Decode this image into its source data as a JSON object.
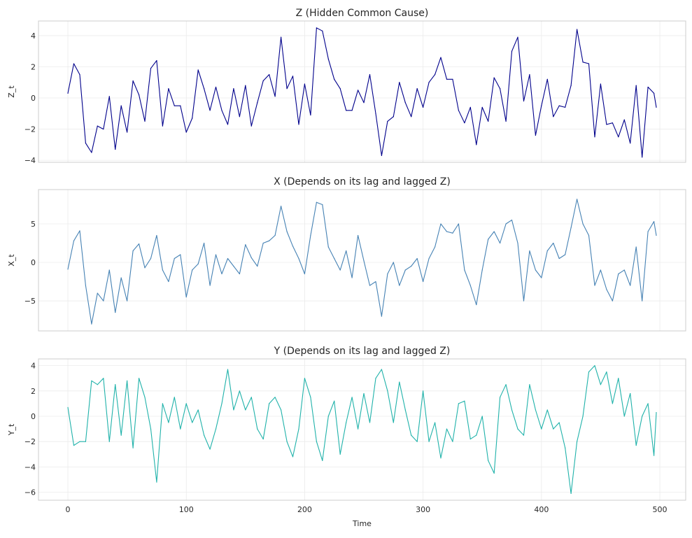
{
  "chart_data": [
    {
      "type": "line",
      "title": "Z (Hidden Common Cause)",
      "xlabel": "",
      "ylabel": "Z_t",
      "color": "#00008b",
      "xlim": [
        -24.85,
        521.85
      ],
      "ylim": [
        -4.13,
        4.94
      ],
      "xticks": [
        0,
        100,
        200,
        300,
        400,
        500
      ],
      "xtick_labels_visible": false,
      "yticks": [
        -4,
        -2,
        0,
        2,
        4
      ],
      "ytick_labels": [
        "−4",
        "−2",
        "0",
        "2",
        "4"
      ],
      "grid": true,
      "y": [
        0.3,
        2.2,
        1.5,
        -2.9,
        -3.5,
        -1.8,
        -2.0,
        0.1,
        -3.3,
        -0.5,
        -2.2,
        1.1,
        0.2,
        -1.5,
        1.9,
        2.4,
        -1.8,
        0.6,
        -0.5,
        -0.5,
        -2.2,
        -1.3,
        1.8,
        0.6,
        -0.8,
        0.7,
        -0.8,
        -1.7,
        0.6,
        -1.2,
        0.8,
        -1.8,
        -0.3,
        1.1,
        1.5,
        0.1,
        3.9,
        0.6,
        1.4,
        -1.7,
        0.9,
        -1.1,
        4.5,
        4.3,
        2.5,
        1.2,
        0.6,
        -0.8,
        -0.8,
        0.5,
        -0.3,
        1.5,
        -1.0,
        -3.7,
        -1.5,
        -1.2,
        1.0,
        -0.3,
        -1.2,
        0.6,
        -0.6,
        1.0,
        1.5,
        2.6,
        1.2,
        1.2,
        -0.8,
        -1.6,
        -0.6,
        -3.0,
        -0.6,
        -1.5,
        1.3,
        0.6,
        -1.5,
        3.0,
        3.9,
        -0.2,
        1.5,
        -2.4,
        -0.5,
        1.2,
        -1.2,
        -0.5,
        -0.6,
        0.8,
        4.4,
        2.3,
        2.2,
        -2.5,
        0.9,
        -1.7,
        -1.6,
        -2.5,
        -1.4,
        -2.9,
        0.8,
        -3.8,
        0.7,
        0.3,
        -0.6
      ]
    },
    {
      "type": "line",
      "title": "X (Depends on its lag and lagged Z)",
      "xlabel": "",
      "ylabel": "X_t",
      "color": "#4682b4",
      "xlim": [
        -24.85,
        521.85
      ],
      "ylim": [
        -8.9,
        9.45
      ],
      "xticks": [
        0,
        100,
        200,
        300,
        400,
        500
      ],
      "xtick_labels_visible": false,
      "yticks": [
        -5,
        0,
        5
      ],
      "ytick_labels": [
        "−5",
        "0",
        "5"
      ],
      "grid": true,
      "y": [
        -0.9,
        2.8,
        4.1,
        -3.0,
        -8.0,
        -4.0,
        -5.0,
        -1.0,
        -6.5,
        -2.0,
        -5.0,
        1.5,
        2.4,
        -0.7,
        0.5,
        3.5,
        -1.0,
        -2.5,
        0.5,
        1.0,
        -4.5,
        -1.0,
        -0.2,
        2.5,
        -3.0,
        1.0,
        -1.5,
        0.5,
        -0.5,
        -1.5,
        2.3,
        0.6,
        -0.5,
        2.5,
        2.8,
        3.5,
        7.3,
        4.0,
        2.1,
        0.5,
        -1.5,
        3.5,
        7.8,
        7.5,
        2.0,
        0.5,
        -1.0,
        1.5,
        -2.0,
        3.5,
        0.2,
        -3.0,
        -2.5,
        -7.0,
        -1.5,
        0.0,
        -3.0,
        -1.0,
        -0.5,
        0.5,
        -2.5,
        0.5,
        2.0,
        5.0,
        4.0,
        3.8,
        5.0,
        -1.0,
        -3.0,
        -5.5,
        -1.0,
        3.0,
        4.0,
        2.5,
        5.0,
        5.5,
        2.5,
        -5.0,
        1.5,
        -1.0,
        -2.0,
        1.5,
        2.5,
        0.5,
        1.0,
        4.5,
        8.2,
        5.0,
        3.5,
        -3.0,
        -1.0,
        -3.5,
        -5.0,
        -1.5,
        -1.0,
        -3.0,
        2.0,
        -5.0,
        4.0,
        5.3,
        3.5
      ]
    },
    {
      "type": "line",
      "title": "Y (Depends on its lag and lagged Z)",
      "xlabel": "Time",
      "ylabel": "Y_t",
      "color": "#20b2aa",
      "xlim": [
        -24.85,
        521.85
      ],
      "ylim": [
        -6.63,
        4.53
      ],
      "xticks": [
        0,
        100,
        200,
        300,
        400,
        500
      ],
      "xtick_labels": [
        "0",
        "100",
        "200",
        "300",
        "400",
        "500"
      ],
      "xtick_labels_visible": true,
      "yticks": [
        -6,
        -4,
        -2,
        0,
        2,
        4
      ],
      "ytick_labels": [
        "−6",
        "−4",
        "−2",
        "0",
        "2",
        "4"
      ],
      "grid": true,
      "y": [
        0.7,
        -2.3,
        -2.0,
        -2.0,
        2.8,
        2.5,
        3.0,
        -2.0,
        2.5,
        -1.5,
        2.8,
        -2.5,
        3.0,
        1.5,
        -1.0,
        -5.2,
        1.0,
        -0.5,
        1.5,
        -1.0,
        1.0,
        -0.5,
        0.5,
        -1.5,
        -2.6,
        -1.0,
        1.0,
        3.7,
        0.5,
        2.0,
        0.5,
        1.5,
        -1.0,
        -1.8,
        1.0,
        1.5,
        0.5,
        -2.0,
        -3.2,
        -1.0,
        3.0,
        1.5,
        -2.0,
        -3.5,
        0.0,
        1.2,
        -3.0,
        -0.5,
        1.5,
        -1.0,
        1.8,
        -0.5,
        3.0,
        3.7,
        2.0,
        -0.5,
        2.7,
        0.5,
        -1.5,
        -2.0,
        2.0,
        -2.0,
        -0.5,
        -3.3,
        -1.0,
        -2.0,
        1.0,
        1.2,
        -1.8,
        -1.5,
        0.0,
        -3.5,
        -4.5,
        1.5,
        2.5,
        0.5,
        -1.0,
        -1.5,
        2.5,
        0.5,
        -1.0,
        0.5,
        -1.0,
        -0.5,
        -2.5,
        -6.1,
        -2.0,
        0.0,
        3.5,
        4.0,
        2.5,
        3.5,
        1.0,
        3.0,
        0.0,
        1.8,
        -2.3,
        0.0,
        1.0,
        -3.1,
        0.3
      ]
    }
  ],
  "time": [
    0,
    5,
    10,
    15,
    20,
    25,
    30,
    35,
    40,
    45,
    50,
    55,
    60,
    65,
    70,
    75,
    80,
    85,
    90,
    95,
    100,
    105,
    110,
    115,
    120,
    125,
    130,
    135,
    140,
    145,
    150,
    155,
    160,
    165,
    170,
    175,
    180,
    185,
    190,
    195,
    200,
    205,
    210,
    215,
    220,
    225,
    230,
    235,
    240,
    245,
    250,
    255,
    260,
    265,
    270,
    275,
    280,
    285,
    290,
    295,
    300,
    305,
    310,
    315,
    320,
    325,
    330,
    335,
    340,
    345,
    350,
    355,
    360,
    365,
    370,
    375,
    380,
    385,
    390,
    395,
    400,
    405,
    410,
    415,
    420,
    425,
    430,
    435,
    440,
    445,
    450,
    455,
    460,
    465,
    470,
    475,
    480,
    485,
    490,
    495,
    497
  ]
}
